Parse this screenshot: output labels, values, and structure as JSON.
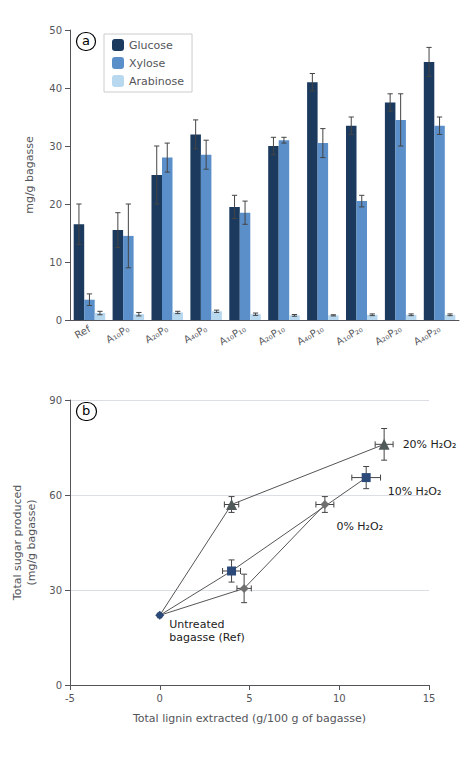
{
  "chart_data": [
    {
      "type": "bar",
      "title": "a",
      "categories": [
        "Ref",
        "A₁₀P₀",
        "A₂₀P₀",
        "A₄₀P₀",
        "A₁₀P₁₀",
        "A₂₀P₁₀",
        "A₄₀P₁₀",
        "A₁₀P₂₀",
        "A₂₀P₂₀",
        "A₄₀P₂₀"
      ],
      "series": [
        {
          "name": "Glucose",
          "color": "#1b3a5e",
          "values": [
            16.5,
            15.5,
            25.0,
            32.0,
            19.5,
            30.0,
            41.0,
            33.5,
            37.5,
            44.5
          ],
          "errors": [
            3.5,
            3.0,
            5.0,
            2.5,
            2.0,
            1.5,
            1.5,
            1.5,
            1.5,
            2.5
          ]
        },
        {
          "name": "Xylose",
          "color": "#5b8fc9",
          "values": [
            3.5,
            14.5,
            28.0,
            28.5,
            18.5,
            31.0,
            30.5,
            20.5,
            34.5,
            33.5
          ],
          "errors": [
            1.0,
            5.5,
            2.5,
            2.5,
            2.0,
            0.5,
            2.5,
            1.0,
            4.5,
            1.5
          ]
        },
        {
          "name": "Arabinose",
          "color": "#b8d8f0",
          "values": [
            1.2,
            1.0,
            1.3,
            1.5,
            1.0,
            0.8,
            0.8,
            0.9,
            0.9,
            0.9
          ],
          "errors": [
            0.3,
            0.3,
            0.2,
            0.2,
            0.2,
            0.15,
            0.1,
            0.15,
            0.15,
            0.15
          ]
        }
      ],
      "ylabel": "mg/g bagasse",
      "ylim": [
        0,
        50
      ],
      "yticks": [
        0,
        10,
        20,
        30,
        40,
        50
      ],
      "grid": false,
      "legend": "upper left"
    },
    {
      "type": "scatter",
      "title": "b",
      "xlabel": "Total lignin extracted (g/100 g of bagasse)",
      "ylabel": "Total sugar produced\n(mg/g bagasse)",
      "xlim": [
        -5,
        15
      ],
      "xticks": [
        -5,
        0,
        5,
        10,
        15
      ],
      "ylim": [
        0,
        90
      ],
      "yticks": [
        0,
        30,
        60,
        90
      ],
      "grid": true,
      "series": [
        {
          "name": "Untreated\nbagasse (Ref)",
          "type": "scatter",
          "marker": "diamond",
          "color": "#2b4a7a",
          "x": [
            0.0
          ],
          "y": [
            22.0
          ],
          "xerr": [
            0.1
          ],
          "yerr": [
            0.5
          ]
        },
        {
          "name": "0% H₂O₂",
          "type": "line",
          "marker": "diamond",
          "color": "#707070",
          "x": [
            4.7,
            9.2
          ],
          "y": [
            30.5,
            57.0
          ],
          "xerr": [
            0.4,
            0.5
          ],
          "yerr": [
            4.5,
            2.5
          ]
        },
        {
          "name": "10% H₂O₂",
          "type": "line",
          "marker": "square",
          "color": "#2b4a7a",
          "x": [
            4.0,
            11.5
          ],
          "y": [
            36.0,
            65.5
          ],
          "xerr": [
            0.5,
            0.8
          ],
          "yerr": [
            3.5,
            3.5
          ]
        },
        {
          "name": "20% H₂O₂",
          "type": "line",
          "marker": "triangle",
          "color": "#505a5a",
          "x": [
            4.0,
            12.5
          ],
          "y": [
            57.0,
            76.0
          ],
          "xerr": [
            0.4,
            0.5
          ],
          "yerr": [
            2.5,
            5.0
          ]
        }
      ]
    }
  ]
}
